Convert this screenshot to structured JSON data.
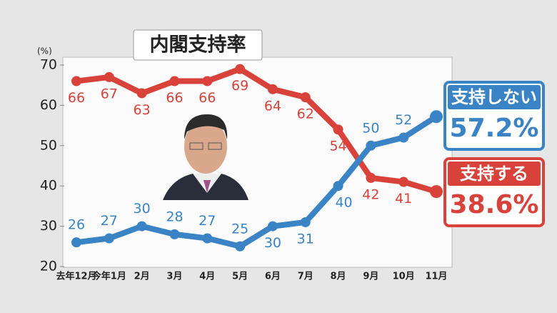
{
  "chart_data": {
    "type": "line",
    "title": "内閣支持率",
    "y_unit": "(%)",
    "categories": [
      "去年12月",
      "今年1月",
      "2月",
      "3月",
      "4月",
      "5月",
      "6月",
      "7月",
      "8月",
      "9月",
      "10月",
      "11月"
    ],
    "series": [
      {
        "name": "支持する",
        "color": "#d8423a",
        "values": [
          66,
          67,
          63,
          66,
          66,
          69,
          64,
          62,
          54,
          42,
          41,
          38.6
        ],
        "value_labels": [
          "66",
          "67",
          "63",
          "66",
          "66",
          "69",
          "64",
          "62",
          "54",
          "42",
          "41",
          "38.6%"
        ]
      },
      {
        "name": "支持しない",
        "color": "#3a84c6",
        "values": [
          26,
          27,
          30,
          28,
          27,
          25,
          30,
          31,
          40,
          50,
          52,
          57.2
        ],
        "value_labels": [
          "26",
          "27",
          "30",
          "28",
          "27",
          "25",
          "30",
          "31",
          "40",
          "50",
          "52",
          "57.2%"
        ]
      }
    ],
    "ylim": [
      20,
      70
    ],
    "yticks": [
      20,
      30,
      40,
      50,
      60,
      70
    ],
    "grid": false
  }
}
